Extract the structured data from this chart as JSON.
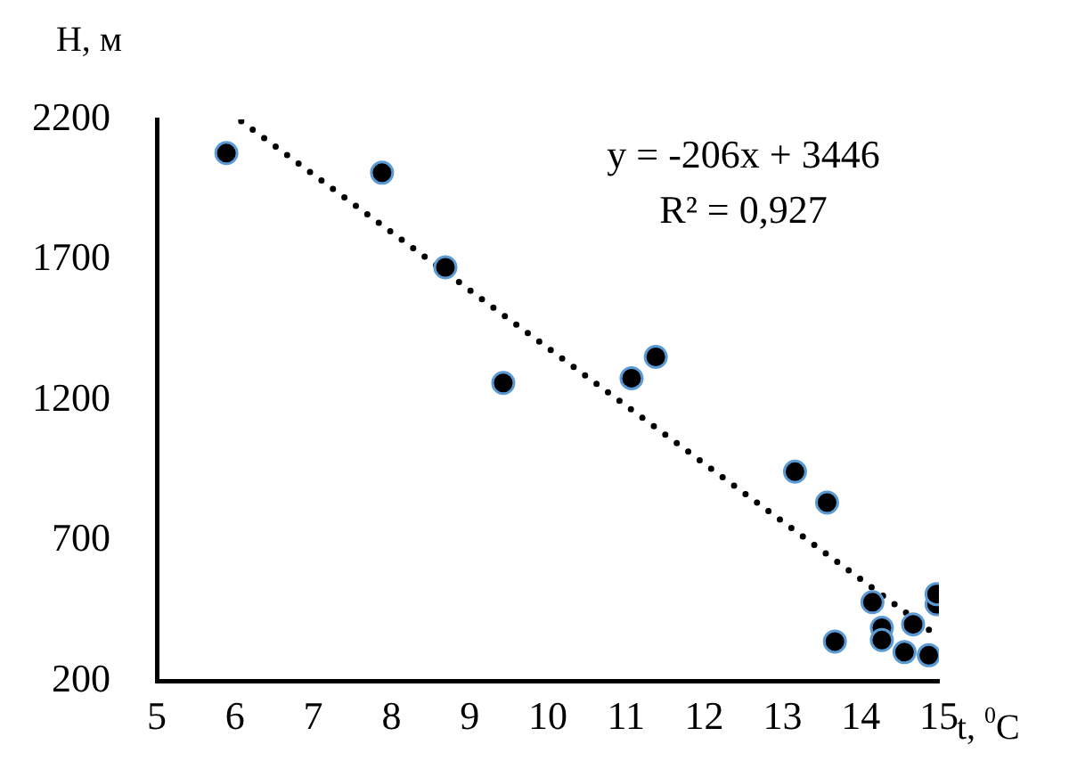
{
  "chart_data": {
    "type": "scatter",
    "xlabel": "t, $^{0}$C",
    "ylabel": "H, м",
    "xlim": [
      5,
      15
    ],
    "xticks": [
      5,
      6,
      7,
      8,
      9,
      10,
      11,
      12,
      13,
      14,
      15
    ],
    "ylim": [
      200,
      2200
    ],
    "yticks": [
      200,
      700,
      1200,
      1700,
      2200
    ],
    "grid": false,
    "legend": false,
    "marker": "circle",
    "annotations": [
      "y = -206x + 3446",
      "R² = 0,927"
    ],
    "series": [
      {
        "color": "#000000",
        "x": [
          5.89,
          7.88,
          8.69,
          9.43,
          11.07,
          11.38,
          13.16,
          13.57,
          13.67,
          14.15,
          14.27,
          14.27,
          14.56,
          14.67,
          14.87,
          14.97,
          14.97
        ],
        "values": [
          2080,
          2010,
          1673,
          1261,
          1278,
          1354,
          945,
          835,
          340,
          480,
          389,
          345,
          302,
          401,
          291,
          473,
          509
        ]
      },
      {
        "type": "line",
        "color": "#000000",
        "line_style": "dotted",
        "marker": "none",
        "x": [
          6.08,
          14.95
        ],
        "values": [
          2194,
          366
        ]
      }
    ]
  }
}
